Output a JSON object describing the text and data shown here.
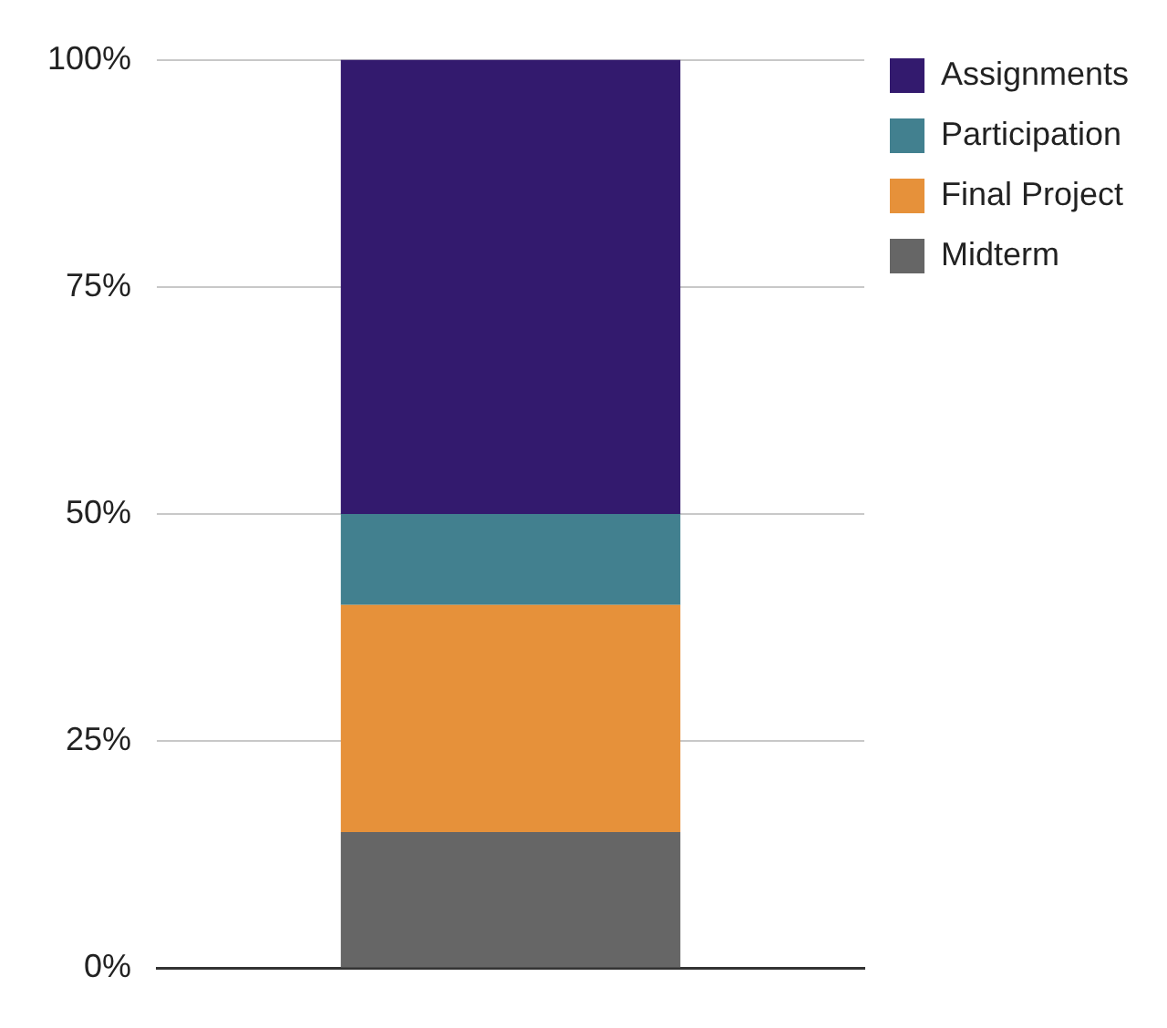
{
  "chart_data": {
    "type": "bar",
    "stacked": true,
    "categories": [
      null
    ],
    "series": [
      {
        "name": "Midterm",
        "color": "#666666",
        "values": [
          15
        ]
      },
      {
        "name": "Final Project",
        "color": "#e6913a",
        "values": [
          25
        ]
      },
      {
        "name": "Participation",
        "color": "#42808f",
        "values": [
          10
        ]
      },
      {
        "name": "Assignments",
        "color": "#331a6e",
        "values": [
          50
        ]
      }
    ],
    "ylim": [
      0,
      100
    ],
    "yticks": [
      {
        "value": 0,
        "label": "0%"
      },
      {
        "value": 25,
        "label": "25%"
      },
      {
        "value": 50,
        "label": "50%"
      },
      {
        "value": 75,
        "label": "75%"
      },
      {
        "value": 100,
        "label": "100%"
      }
    ],
    "grid": "y",
    "legend": "top right"
  }
}
